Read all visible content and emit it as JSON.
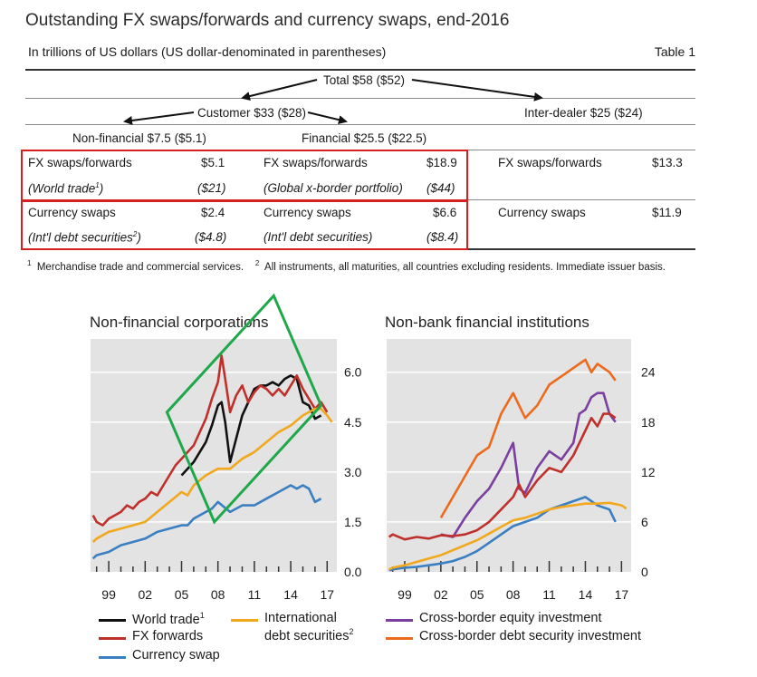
{
  "title": "Outstanding FX swaps/forwards and currency swaps, end-2016",
  "subtitle": "In trillions of US dollars (US dollar-denominated in parentheses)",
  "table_number": "Table 1",
  "tree": {
    "total": "Total $58 ($52)",
    "customer": "Customer $33 ($28)",
    "inter_dealer": "Inter-dealer $25 ($24)",
    "non_financial": "Non-financial $7.5 ($5.1)",
    "financial": "Financial $25.5 ($22.5)"
  },
  "table": {
    "nf_fx_label": "FX swaps/forwards",
    "nf_fx_value": "$5.1",
    "nf_trade_label": "(World trade",
    "nf_trade_sup": "1",
    "nf_trade_close": ")",
    "nf_trade_value": "($21)",
    "nf_cs_label": "Currency swaps",
    "nf_cs_value": "$2.4",
    "nf_debt_label": "(Int'l debt securities",
    "nf_debt_sup": "2",
    "nf_debt_close": ")",
    "nf_debt_value": "($4.8)",
    "f_fx_label": "FX swaps/forwards",
    "f_fx_value": "$18.9",
    "f_port_label": "(Global x-border portfolio)",
    "f_port_value": "($44)",
    "f_cs_label": "Currency swaps",
    "f_cs_value": "$6.6",
    "f_debt_label": "(Int'l debt securities)",
    "f_debt_value": "($8.4)",
    "id_fx_label": "FX swaps/forwards",
    "id_fx_value": "$13.3",
    "id_cs_label": "Currency swaps",
    "id_cs_value": "$11.9"
  },
  "footnotes": {
    "fn1_mark": "1",
    "fn1": "Merchandise trade and commercial services.",
    "fn2_mark": "2",
    "fn2": "All instruments, all maturities, all countries excluding residents. Immediate issuer basis."
  },
  "colors": {
    "world_trade": "#111111",
    "fx_forwards": "#c0302b",
    "currency_swap": "#3a7fc1",
    "intl_debt": "#f2a81d",
    "equity": "#7b3fa0",
    "debt_security": "#ec6a1c",
    "highlight_red": "#d62020",
    "highlight_green": "#1fa84a",
    "panel_bg": "#e3e3e3"
  },
  "chart_data": [
    {
      "type": "line",
      "title": "Non-financial corporations",
      "x_ticks": [
        "99",
        "02",
        "05",
        "08",
        "11",
        "14",
        "17"
      ],
      "y_ticks": [
        "0.0",
        "1.5",
        "3.0",
        "4.5",
        "6.0"
      ],
      "ylim": [
        0,
        7
      ],
      "xlim": [
        1997.5,
        2017.8
      ],
      "grid": true,
      "series": [
        {
          "name": "World trade",
          "key": "world_trade",
          "x": [
            2005,
            2005.5,
            2006,
            2006.5,
            2007,
            2007.5,
            2008,
            2008.3,
            2008.6,
            2009,
            2009.5,
            2010,
            2010.5,
            2011,
            2011.5,
            2012,
            2012.5,
            2013,
            2013.5,
            2014,
            2014.5,
            2015,
            2015.5,
            2016,
            2016.5
          ],
          "y": [
            2.9,
            3.1,
            3.3,
            3.6,
            3.9,
            4.4,
            5.0,
            5.1,
            4.5,
            3.3,
            4.0,
            4.7,
            5.1,
            5.5,
            5.6,
            5.6,
            5.7,
            5.6,
            5.8,
            5.9,
            5.8,
            5.1,
            5.0,
            4.6,
            4.7
          ]
        },
        {
          "name": "FX forwards",
          "key": "fx_forwards",
          "x": [
            1997.7,
            1998,
            1998.5,
            1999,
            1999.5,
            2000,
            2000.5,
            2001,
            2001.5,
            2002,
            2002.5,
            2003,
            2003.5,
            2004,
            2004.5,
            2005,
            2005.5,
            2006,
            2006.5,
            2007,
            2007.5,
            2008,
            2008.3,
            2008.6,
            2009,
            2009.5,
            2010,
            2010.5,
            2011,
            2011.5,
            2012,
            2012.5,
            2013,
            2013.5,
            2014,
            2014.5,
            2015,
            2015.5,
            2016,
            2016.5,
            2017
          ],
          "y": [
            1.7,
            1.5,
            1.4,
            1.6,
            1.7,
            1.8,
            2.0,
            1.9,
            2.1,
            2.2,
            2.4,
            2.3,
            2.6,
            2.9,
            3.2,
            3.4,
            3.6,
            3.8,
            4.2,
            4.6,
            5.2,
            5.7,
            6.5,
            5.8,
            4.8,
            5.3,
            5.6,
            5.1,
            5.4,
            5.6,
            5.5,
            5.3,
            5.5,
            5.3,
            5.6,
            5.9,
            5.5,
            5.2,
            4.9,
            5.1,
            4.8
          ]
        },
        {
          "name": "International debt securities",
          "key": "intl_debt",
          "x": [
            1997.7,
            1998,
            1999,
            2000,
            2001,
            2002,
            2003,
            2004,
            2005,
            2005.5,
            2006,
            2007,
            2008,
            2009,
            2010,
            2011,
            2012,
            2013,
            2014,
            2015,
            2016,
            2016.5,
            2017,
            2017.4
          ],
          "y": [
            0.9,
            1.0,
            1.2,
            1.3,
            1.4,
            1.5,
            1.8,
            2.1,
            2.4,
            2.3,
            2.6,
            2.9,
            3.1,
            3.1,
            3.4,
            3.6,
            3.9,
            4.2,
            4.4,
            4.7,
            4.9,
            4.9,
            4.7,
            4.5
          ]
        },
        {
          "name": "Currency swap",
          "key": "currency_swap",
          "x": [
            1997.7,
            1998,
            1999,
            2000,
            2001,
            2002,
            2003,
            2004,
            2005,
            2005.5,
            2006,
            2007,
            2007.5,
            2008,
            2009,
            2010,
            2011,
            2012,
            2013,
            2014,
            2014.5,
            2015,
            2015.5,
            2016,
            2016.5
          ],
          "y": [
            0.4,
            0.5,
            0.6,
            0.8,
            0.9,
            1.0,
            1.2,
            1.3,
            1.4,
            1.4,
            1.6,
            1.8,
            1.9,
            2.1,
            1.8,
            2.0,
            2.0,
            2.2,
            2.4,
            2.6,
            2.5,
            2.6,
            2.5,
            2.1,
            2.2
          ]
        }
      ]
    },
    {
      "type": "line",
      "title": "Non-bank financial institutions",
      "x_ticks": [
        "99",
        "02",
        "05",
        "08",
        "11",
        "14",
        "17"
      ],
      "y_ticks": [
        "0",
        "6",
        "12",
        "18",
        "24"
      ],
      "ylim": [
        0,
        28
      ],
      "xlim": [
        1997.5,
        2017.8
      ],
      "grid": true,
      "series": [
        {
          "name": "Cross-border equity investment",
          "key": "equity",
          "x": [
            2002,
            2003,
            2004,
            2005,
            2006,
            2007,
            2008,
            2008.5,
            2009,
            2010,
            2011,
            2012,
            2013,
            2013.5,
            2014,
            2014.5,
            2015,
            2015.5,
            2016,
            2016.5
          ],
          "y": [
            4.5,
            4.2,
            6.5,
            8.5,
            10.0,
            12.5,
            15.5,
            10.0,
            9.5,
            12.5,
            14.5,
            13.5,
            15.5,
            19.0,
            19.5,
            21.0,
            21.5,
            21.5,
            19.0,
            18.0
          ]
        },
        {
          "name": "Cross-border debt security investment",
          "key": "debt_security",
          "x": [
            2002,
            2003,
            2004,
            2005,
            2006,
            2007,
            2008,
            2008.5,
            2009,
            2010,
            2011,
            2012,
            2013,
            2013.5,
            2014,
            2014.5,
            2015,
            2015.5,
            2016,
            2016.5
          ],
          "y": [
            6.5,
            9.0,
            11.5,
            14.0,
            15.0,
            19.0,
            21.5,
            20.0,
            18.5,
            20.0,
            22.5,
            23.5,
            24.5,
            25.0,
            25.5,
            24.0,
            25.0,
            24.5,
            24.0,
            23.0
          ]
        },
        {
          "name": "FX forwards",
          "key": "fx_forwards",
          "x": [
            1997.7,
            1998,
            1999,
            2000,
            2001,
            2002,
            2003,
            2004,
            2005,
            2006,
            2007,
            2008,
            2008.5,
            2009,
            2010,
            2011,
            2012,
            2013,
            2014,
            2014.5,
            2015,
            2015.5,
            2016,
            2016.5
          ],
          "y": [
            4.2,
            4.5,
            3.9,
            4.2,
            4.0,
            4.4,
            4.3,
            4.5,
            5.0,
            6.0,
            7.5,
            9.0,
            10.5,
            9.0,
            11.0,
            12.5,
            12.0,
            14.0,
            17.0,
            18.5,
            17.5,
            19.0,
            19.0,
            18.5
          ]
        },
        {
          "name": "Currency swap",
          "key": "currency_swap",
          "x": [
            1997.7,
            1998,
            1999,
            2000,
            2001,
            2002,
            2003,
            2004,
            2005,
            2006,
            2007,
            2008,
            2009,
            2010,
            2011,
            2012,
            2013,
            2014,
            2015,
            2016,
            2016.5
          ],
          "y": [
            0.2,
            0.3,
            0.5,
            0.6,
            0.8,
            1.0,
            1.3,
            1.8,
            2.5,
            3.5,
            4.5,
            5.5,
            6.0,
            6.5,
            7.5,
            8.0,
            8.5,
            9.0,
            8.0,
            7.5,
            6.0
          ]
        },
        {
          "name": "International debt securities",
          "key": "intl_debt",
          "x": [
            1997.7,
            1998,
            1999,
            2000,
            2001,
            2002,
            2003,
            2004,
            2005,
            2006,
            2007,
            2008,
            2009,
            2010,
            2011,
            2012,
            2013,
            2014,
            2015,
            2016,
            2017,
            2017.4
          ],
          "y": [
            0.3,
            0.5,
            0.8,
            1.2,
            1.6,
            2.0,
            2.6,
            3.2,
            3.8,
            4.6,
            5.4,
            6.2,
            6.5,
            7.0,
            7.5,
            7.8,
            8.0,
            8.2,
            8.2,
            8.3,
            8.0,
            7.6
          ]
        }
      ]
    }
  ],
  "legend": {
    "world_trade": "World trade",
    "world_trade_sup": "1",
    "fx_forwards": "FX forwards",
    "currency_swap": "Currency swap",
    "intl_line1": "International",
    "intl_line2": "debt securities",
    "intl_sup": "2",
    "equity": "Cross-border equity investment",
    "debt_security": "Cross-border debt security investment"
  }
}
